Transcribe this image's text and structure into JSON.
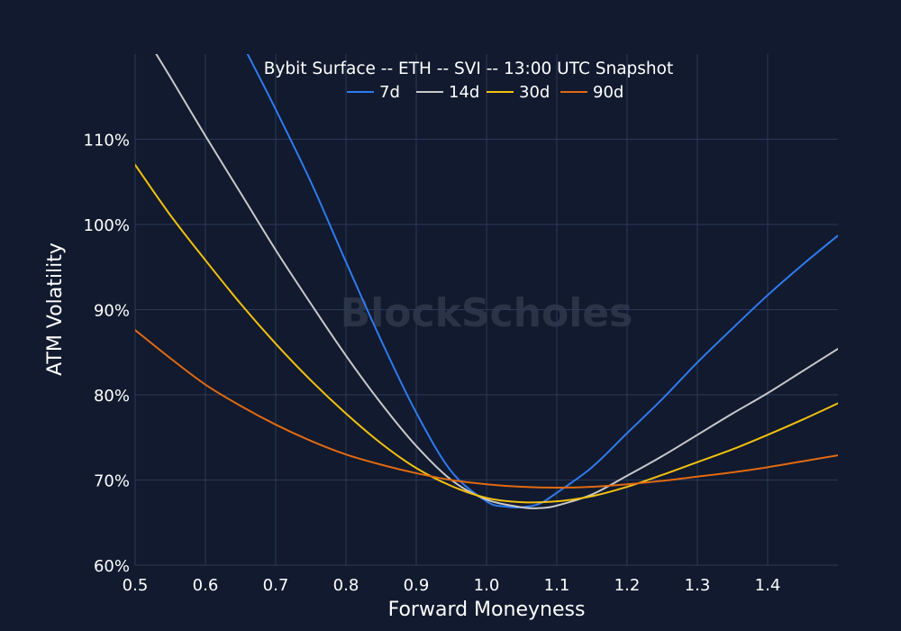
{
  "chart_data": {
    "type": "line",
    "title": "Bybit Surface -- ETH -- SVI -- 13:00 UTC Snapshot",
    "xlabel": "Forward Moneyness",
    "ylabel": "ATM Volatility",
    "watermark": "BlockScholes",
    "xlim": [
      0.5,
      1.5
    ],
    "ylim": [
      60,
      120
    ],
    "x_ticks": [
      0.5,
      0.6,
      0.7,
      0.8,
      0.9,
      1.0,
      1.1,
      1.2,
      1.3,
      1.4
    ],
    "x_tick_labels": [
      "0.5",
      "0.6",
      "0.7",
      "0.8",
      "0.9",
      "1.0",
      "1.1",
      "1.2",
      "1.3",
      "1.4"
    ],
    "y_ticks": [
      60,
      70,
      80,
      90,
      100,
      110
    ],
    "y_tick_labels": [
      "60%",
      "70%",
      "80%",
      "90%",
      "100%",
      "110%"
    ],
    "grid": true,
    "legend_position": "top-center",
    "background_color": "#111a2e",
    "series": [
      {
        "name": "7d",
        "color": "#2f7bf0",
        "x": [
          0.66,
          0.7,
          0.75,
          0.8,
          0.85,
          0.9,
          0.95,
          1.0,
          1.025,
          1.05,
          1.075,
          1.1,
          1.15,
          1.2,
          1.25,
          1.3,
          1.35,
          1.4,
          1.45,
          1.5
        ],
        "y": [
          120.0,
          113.5,
          105.0,
          95.6,
          86.4,
          77.9,
          71.0,
          67.5,
          66.9,
          66.8,
          67.2,
          68.5,
          71.5,
          75.5,
          79.5,
          83.8,
          87.8,
          91.7,
          95.3,
          98.7
        ]
      },
      {
        "name": "14d",
        "color": "#c9c9c9",
        "x": [
          0.53,
          0.55,
          0.6,
          0.65,
          0.7,
          0.75,
          0.8,
          0.85,
          0.9,
          0.95,
          1.0,
          1.05,
          1.075,
          1.1,
          1.15,
          1.2,
          1.25,
          1.3,
          1.35,
          1.4,
          1.45,
          1.5
        ],
        "y": [
          120.0,
          117.3,
          110.4,
          103.7,
          97.0,
          90.7,
          84.6,
          79.0,
          74.0,
          70.0,
          67.7,
          66.8,
          66.7,
          67.0,
          68.3,
          70.5,
          72.8,
          75.3,
          77.8,
          80.2,
          82.8,
          85.4
        ]
      },
      {
        "name": "30d",
        "color": "#f2c10f",
        "x": [
          0.5,
          0.55,
          0.6,
          0.65,
          0.7,
          0.75,
          0.8,
          0.85,
          0.9,
          0.95,
          1.0,
          1.05,
          1.1,
          1.15,
          1.2,
          1.25,
          1.3,
          1.35,
          1.4,
          1.45,
          1.5
        ],
        "y": [
          107.0,
          101.1,
          95.8,
          90.7,
          86.0,
          81.7,
          77.8,
          74.3,
          71.4,
          69.3,
          67.9,
          67.4,
          67.5,
          68.1,
          69.2,
          70.6,
          72.1,
          73.6,
          75.3,
          77.1,
          79.0
        ]
      },
      {
        "name": "90d",
        "color": "#e06a12",
        "x": [
          0.5,
          0.55,
          0.6,
          0.65,
          0.7,
          0.75,
          0.8,
          0.85,
          0.9,
          0.95,
          1.0,
          1.05,
          1.1,
          1.15,
          1.2,
          1.25,
          1.3,
          1.35,
          1.4,
          1.45,
          1.5
        ],
        "y": [
          87.6,
          84.3,
          81.2,
          78.7,
          76.5,
          74.6,
          73.0,
          71.8,
          70.8,
          70.0,
          69.5,
          69.2,
          69.1,
          69.2,
          69.5,
          69.9,
          70.4,
          70.9,
          71.5,
          72.2,
          72.9
        ]
      }
    ]
  }
}
